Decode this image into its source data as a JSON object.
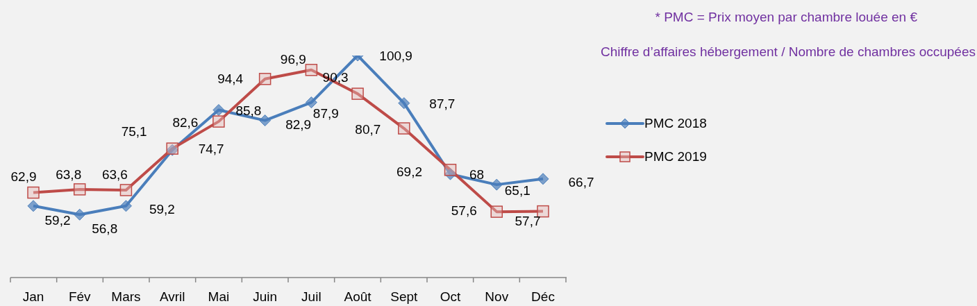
{
  "chart_data": {
    "type": "line",
    "categories": [
      "Jan",
      "Fév",
      "Mars",
      "Avril",
      "Mai",
      "Juin",
      "Juil",
      "Août",
      "Sept",
      "Oct",
      "Nov",
      "Déc"
    ],
    "series": [
      {
        "name": "PMC 2018",
        "color": "#4a7ebb",
        "marker": "diamond",
        "values": [
          59.2,
          56.8,
          59.2,
          74.7,
          85.8,
          82.9,
          87.9,
          100.9,
          87.7,
          68,
          65.1,
          66.7
        ],
        "value_labels": [
          "59,2",
          "56,8",
          "59,2",
          "74,7",
          "85,8",
          "82,9",
          "87,9",
          "100,9",
          "87,7",
          "68",
          "65,1",
          "66,7"
        ]
      },
      {
        "name": "PMC 2019",
        "color": "#be4b48",
        "marker": "square",
        "values": [
          62.9,
          63.8,
          63.6,
          75.1,
          82.6,
          94.4,
          96.9,
          90.3,
          80.7,
          69.2,
          57.6,
          57.7
        ],
        "value_labels": [
          "62,9",
          "63,8",
          "63,6",
          "75,1",
          "82,6",
          "94,4",
          "96,9",
          "90,3",
          "80,7",
          "69,2",
          "57,6",
          "57,7"
        ]
      }
    ],
    "tick_labels": "x",
    "legend": "right",
    "grid": false,
    "annotations": [
      "* PMC = Prix moyen par chambre louée en €",
      "Chiffre d’affaires hébergement / Nombre de chambres occupées"
    ]
  }
}
